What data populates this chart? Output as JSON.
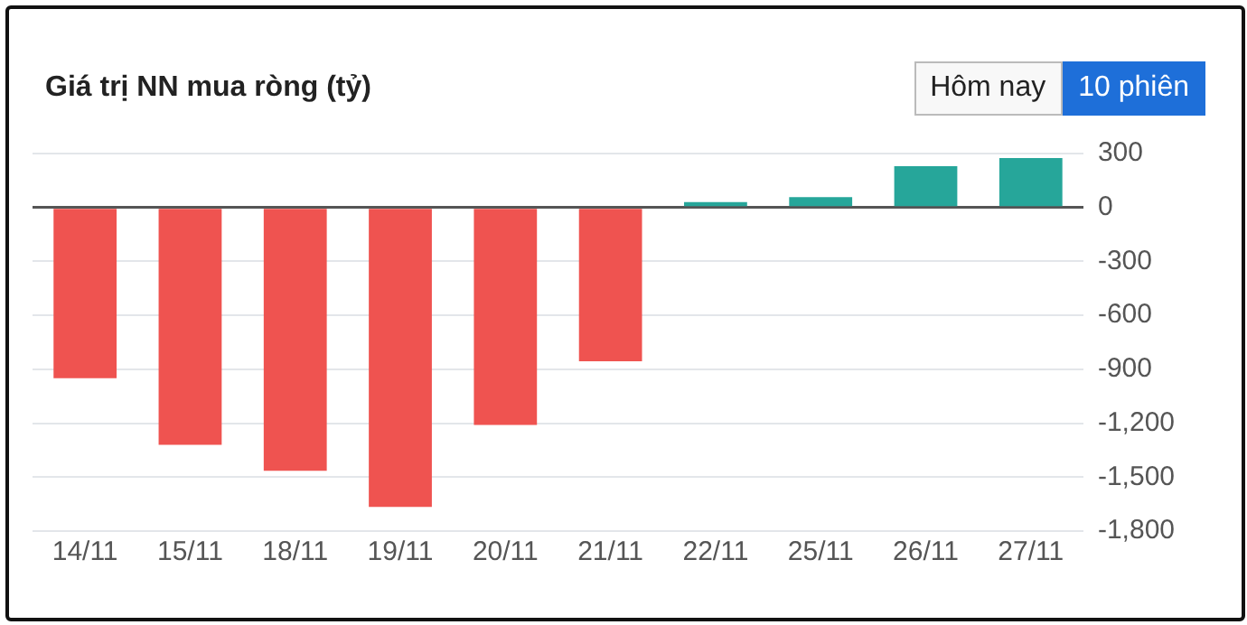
{
  "chart_data": {
    "type": "bar",
    "title": "Giá trị NN mua ròng (tỷ)",
    "annotations": [
      "Hôm nay",
      "10 phiên"
    ],
    "categories": [
      "14/11",
      "15/11",
      "18/11",
      "19/11",
      "20/11",
      "21/11",
      "22/11",
      "25/11",
      "26/11",
      "27/11"
    ],
    "values": [
      -950,
      -1320,
      -1465,
      -1665,
      -1210,
      -855,
      30,
      58,
      230,
      275
    ],
    "colors": [
      "#ef5350",
      "#ef5350",
      "#ef5350",
      "#ef5350",
      "#ef5350",
      "#ef5350",
      "#26a69a",
      "#26a69a",
      "#26a69a",
      "#26a69a"
    ],
    "ylim": [
      -1800,
      300
    ],
    "yticks": [
      300,
      0,
      {
        "value": -300,
        "label": "-300"
      },
      {
        "value": -600,
        "label": "-600"
      },
      {
        "value": -900,
        "label": "-900"
      },
      {
        "value": -1200,
        "label": "-1,200"
      },
      {
        "value": -1500,
        "label": "-1,500"
      },
      {
        "value": -1800,
        "label": "-1,800"
      }
    ],
    "grid": "y",
    "legend": false
  }
}
